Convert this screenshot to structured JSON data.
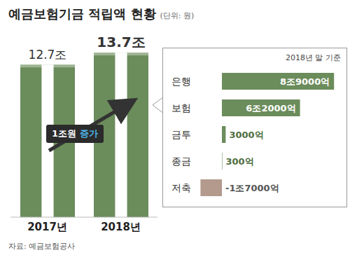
{
  "chart_data": [
    {
      "type": "bar",
      "title": "예금보험기금 적립액 현황",
      "subtitle": "(단위: 원)",
      "categories": [
        "2017년",
        "2018년"
      ],
      "values": [
        12.7,
        13.7
      ],
      "value_labels": [
        "12.7조",
        "13.7조"
      ],
      "color": "#6b8c5b",
      "ylim": [
        0,
        14
      ],
      "tick_labels": "x",
      "data_labels": true,
      "annotations": [
        "1조원 증가"
      ],
      "source": "자료: 예금보험공사"
    },
    {
      "type": "bar",
      "orientation": "horizontal",
      "title": "2018년 말 기준",
      "categories": [
        "은행",
        "보험",
        "금투",
        "종금",
        "저축"
      ],
      "values": [
        89000,
        62000,
        3000,
        300,
        -17000
      ],
      "value_labels": [
        "8조9000억",
        "6조2000억",
        "3000억",
        "300억",
        "-1조7000억"
      ],
      "colors": [
        "#6b8c5b",
        "#6b8c5b",
        "#6b8c5b",
        "#6b8c5b",
        "#b39a8c"
      ],
      "xlim": [
        -20000,
        90000
      ],
      "tick_labels": "y",
      "data_labels": true
    }
  ]
}
